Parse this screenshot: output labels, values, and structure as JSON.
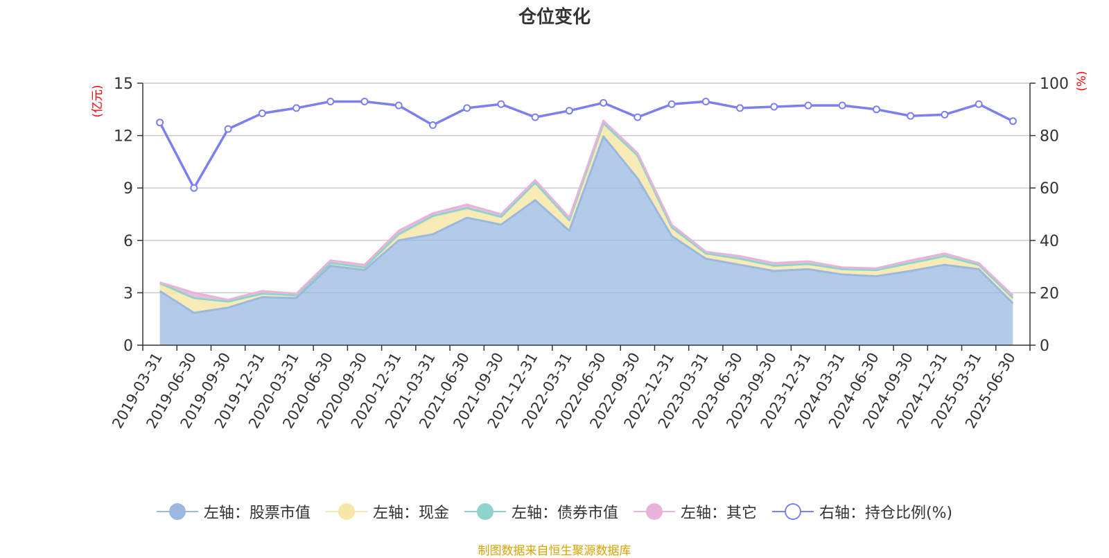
{
  "title": "仓位变化",
  "source": "制图数据来自恒生聚源数据库",
  "colors": {
    "stock": "#9ab8e0",
    "cash": "#f8e8a8",
    "bond": "#8fd3cf",
    "other": "#e8b3d8",
    "ratio": "#7b7ff0",
    "axis_label": "#ff0000"
  },
  "legend": [
    {
      "label": "左轴：股票市值",
      "color": "#9ab8e0",
      "icon": "filled-circle"
    },
    {
      "label": "左轴：现金",
      "color": "#f8e8a8",
      "icon": "filled-circle"
    },
    {
      "label": "左轴：债券市值",
      "color": "#8fd3cf",
      "icon": "filled-circle"
    },
    {
      "label": "左轴：其它",
      "color": "#e8b3d8",
      "icon": "filled-circle"
    },
    {
      "label": "右轴：持仓比例(%)",
      "color": "#7b7ff0",
      "icon": "hollow-circle"
    }
  ],
  "chart_data": {
    "type": "area",
    "stacked": true,
    "x": [
      "2019-03-31",
      "2019-06-30",
      "2019-09-30",
      "2019-12-31",
      "2020-03-31",
      "2020-06-30",
      "2020-09-30",
      "2020-12-31",
      "2021-03-31",
      "2021-06-30",
      "2021-09-30",
      "2021-12-31",
      "2022-03-31",
      "2022-06-30",
      "2022-09-30",
      "2022-12-31",
      "2023-03-31",
      "2023-06-30",
      "2023-09-30",
      "2023-12-31",
      "2024-03-31",
      "2024-06-30",
      "2024-09-30",
      "2024-12-31",
      "2025-03-31",
      "2025-06-30"
    ],
    "y_left": {
      "label": "(亿元)",
      "range": [
        0,
        15
      ],
      "ticks": [
        0,
        3,
        6,
        9,
        12,
        15
      ]
    },
    "y_right": {
      "label": "(%)",
      "range": [
        0,
        100
      ],
      "ticks": [
        0,
        20,
        40,
        60,
        80,
        100
      ]
    },
    "grid": true,
    "legend_position": "bottom",
    "series": [
      {
        "name": "左轴：股票市值",
        "axis": "left",
        "values": [
          3.1,
          1.85,
          2.15,
          2.75,
          2.7,
          4.55,
          4.3,
          6.0,
          6.35,
          7.3,
          6.9,
          8.3,
          6.55,
          11.95,
          9.55,
          6.25,
          4.95,
          4.6,
          4.25,
          4.35,
          4.05,
          3.95,
          4.25,
          4.6,
          4.35,
          2.4
        ]
      },
      {
        "name": "左轴：现金",
        "axis": "left",
        "values": [
          0.35,
          0.85,
          0.35,
          0.2,
          0.15,
          0.15,
          0.15,
          0.25,
          0.95,
          0.5,
          0.45,
          1.0,
          0.6,
          0.75,
          1.3,
          0.5,
          0.3,
          0.35,
          0.3,
          0.3,
          0.3,
          0.35,
          0.45,
          0.5,
          0.25,
          0.3
        ]
      },
      {
        "name": "左轴：债券市值",
        "axis": "left",
        "values": [
          0.1,
          0.0,
          0.0,
          0.0,
          0.0,
          0.0,
          0.0,
          0.1,
          0.1,
          0.05,
          0.0,
          0.0,
          0.0,
          0.0,
          0.0,
          0.0,
          0.0,
          0.0,
          0.0,
          0.0,
          0.0,
          0.0,
          0.0,
          0.0,
          0.0,
          0.0
        ]
      },
      {
        "name": "左轴：其它",
        "axis": "left",
        "values": [
          0.05,
          0.3,
          0.1,
          0.15,
          0.1,
          0.15,
          0.15,
          0.2,
          0.15,
          0.2,
          0.15,
          0.15,
          0.15,
          0.15,
          0.15,
          0.15,
          0.1,
          0.15,
          0.15,
          0.15,
          0.1,
          0.1,
          0.15,
          0.15,
          0.1,
          0.15
        ]
      },
      {
        "name": "右轴：持仓比例(%)",
        "axis": "right",
        "values": [
          85,
          60,
          82.5,
          88.5,
          90.5,
          93,
          93,
          91.5,
          84,
          90.5,
          92,
          87,
          89.5,
          92.5,
          87,
          92,
          93,
          90.5,
          91,
          91.5,
          91.5,
          90,
          87.5,
          88,
          92,
          85.5
        ]
      }
    ]
  }
}
